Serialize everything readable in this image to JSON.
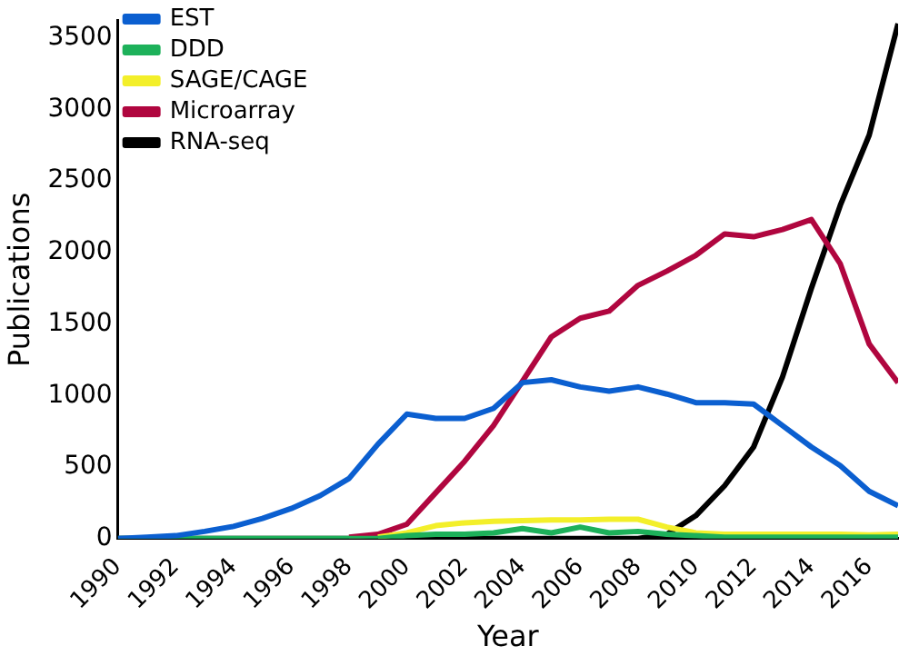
{
  "chart_data": {
    "type": "line",
    "xlabel": "Year",
    "ylabel": "Publications",
    "x": [
      1990,
      1991,
      1992,
      1993,
      1994,
      1995,
      1996,
      1997,
      1998,
      1999,
      2000,
      2001,
      2002,
      2003,
      2004,
      2005,
      2006,
      2007,
      2008,
      2009,
      2010,
      2011,
      2012,
      2013,
      2014,
      2015,
      2016,
      2017
    ],
    "series": [
      {
        "name": "EST",
        "color": "#0b5fd0",
        "values": [
          0,
          10,
          20,
          50,
          85,
          140,
          210,
          300,
          420,
          660,
          870,
          840,
          840,
          910,
          1090,
          1110,
          1060,
          1030,
          1060,
          1010,
          950,
          950,
          940,
          790,
          640,
          510,
          330,
          230
        ]
      },
      {
        "name": "DDD",
        "color": "#1db15a",
        "values": [
          0,
          0,
          0,
          0,
          0,
          0,
          0,
          0,
          0,
          0,
          20,
          30,
          30,
          40,
          70,
          40,
          80,
          40,
          50,
          30,
          20,
          10,
          10,
          10,
          10,
          10,
          10,
          10
        ]
      },
      {
        "name": "SAGE/CAGE",
        "color": "#f3ef2a",
        "values": [
          null,
          null,
          null,
          null,
          null,
          null,
          null,
          null,
          null,
          10,
          40,
          90,
          110,
          120,
          125,
          130,
          130,
          135,
          135,
          80,
          40,
          30,
          30,
          30,
          30,
          30,
          25,
          30
        ]
      },
      {
        "name": "Microarray",
        "color": "#b0063f",
        "values": [
          null,
          null,
          null,
          null,
          null,
          null,
          null,
          null,
          10,
          30,
          100,
          320,
          540,
          790,
          1100,
          1410,
          1540,
          1590,
          1770,
          1870,
          1980,
          2130,
          2110,
          2160,
          2230,
          1920,
          1360,
          1090
        ]
      },
      {
        "name": "RNA-seq",
        "color": "#000000",
        "values": [
          0,
          0,
          0,
          0,
          0,
          0,
          0,
          0,
          0,
          0,
          0,
          0,
          0,
          0,
          0,
          0,
          0,
          0,
          0,
          30,
          160,
          370,
          640,
          1130,
          1750,
          2330,
          2820,
          3600
        ]
      }
    ],
    "xlim": [
      1990,
      2017
    ],
    "xticks": [
      1990,
      1992,
      1994,
      1996,
      1998,
      2000,
      2002,
      2004,
      2006,
      2008,
      2010,
      2012,
      2014,
      2016
    ],
    "ylim": [
      0,
      3620
    ],
    "yticks": [
      0,
      500,
      1000,
      1500,
      2000,
      2500,
      3000,
      3500
    ],
    "grid": false,
    "legend": "top left",
    "marker": "none",
    "line_style": "solid"
  }
}
